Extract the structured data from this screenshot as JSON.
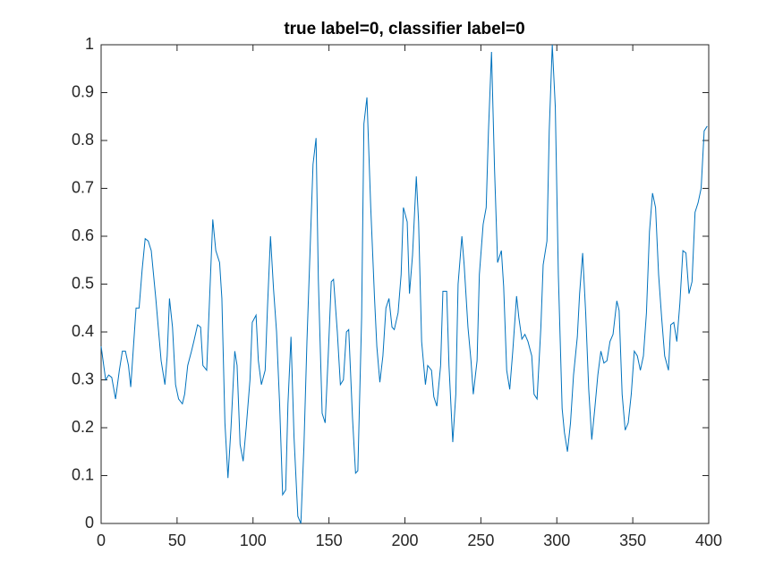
{
  "chart_data": {
    "type": "line",
    "title": "true label=0, classifier label=0",
    "x": [
      0,
      3,
      5,
      7,
      9.5,
      12,
      14,
      16,
      18,
      19.5,
      23,
      25,
      27,
      29,
      31,
      33,
      36,
      39.5,
      42,
      43.5,
      45,
      47,
      49,
      51,
      53.5,
      55,
      57,
      59.5,
      61,
      63.5,
      65.5,
      67,
      69.5,
      73.5,
      75.5,
      78,
      79.5,
      81.5,
      83.5,
      85.5,
      88,
      89.5,
      91.5,
      93.5,
      95.5,
      98,
      99.5,
      102,
      103.5,
      105.5,
      108,
      109.5,
      111.5,
      113.5,
      115.5,
      117.5,
      119.5,
      121.5,
      123,
      125,
      127,
      129.5,
      131.5,
      133.5,
      135.5,
      139.5,
      141.5,
      143,
      145.5,
      147.5,
      149.5,
      151.5,
      153,
      155.5,
      157.5,
      159.5,
      161.5,
      163,
      165.5,
      167.5,
      169,
      171.5,
      173,
      175,
      177.5,
      180,
      181.5,
      183.5,
      185.5,
      187.5,
      189.5,
      191.5,
      193,
      195.5,
      197.5,
      199,
      201.5,
      203,
      205,
      207.5,
      209,
      211,
      213.5,
      215,
      217.5,
      219,
      221,
      223.5,
      225,
      227.5,
      229,
      231.5,
      233.5,
      235,
      237.5,
      239,
      241.5,
      243.5,
      245,
      247.5,
      249,
      251.5,
      253.5,
      255,
      257,
      259,
      261,
      263.5,
      265,
      267,
      269,
      271,
      273.5,
      275,
      277,
      279,
      281,
      283.5,
      285,
      287,
      289.5,
      291,
      293.5,
      295,
      297,
      299,
      301,
      303.5,
      305,
      307,
      309,
      311,
      313.5,
      315,
      317,
      319,
      321,
      323,
      325,
      327,
      329,
      331,
      333,
      335,
      337,
      339.5,
      341,
      343,
      345,
      347,
      349,
      351,
      353,
      355,
      357,
      359,
      361,
      363,
      365,
      367,
      369,
      371,
      373.5,
      375,
      377,
      379,
      381,
      383,
      385,
      387,
      389,
      391,
      393,
      395,
      397,
      399
    ],
    "series": [
      {
        "color": "#0072bd",
        "values": [
          0.37,
          0.3,
          0.31,
          0.305,
          0.26,
          0.32,
          0.36,
          0.36,
          0.33,
          0.285,
          0.45,
          0.45,
          0.53,
          0.595,
          0.59,
          0.57,
          0.47,
          0.34,
          0.29,
          0.35,
          0.47,
          0.41,
          0.29,
          0.26,
          0.25,
          0.27,
          0.33,
          0.36,
          0.38,
          0.415,
          0.41,
          0.33,
          0.32,
          0.635,
          0.57,
          0.545,
          0.47,
          0.21,
          0.095,
          0.2,
          0.36,
          0.33,
          0.165,
          0.13,
          0.2,
          0.3,
          0.42,
          0.435,
          0.34,
          0.29,
          0.32,
          0.45,
          0.6,
          0.49,
          0.4,
          0.25,
          0.06,
          0.07,
          0.25,
          0.39,
          0.18,
          0.015,
          0.0,
          0.16,
          0.38,
          0.75,
          0.805,
          0.51,
          0.23,
          0.21,
          0.35,
          0.505,
          0.51,
          0.4,
          0.29,
          0.3,
          0.4,
          0.405,
          0.22,
          0.105,
          0.11,
          0.43,
          0.835,
          0.89,
          0.66,
          0.47,
          0.37,
          0.295,
          0.35,
          0.45,
          0.47,
          0.41,
          0.405,
          0.44,
          0.52,
          0.66,
          0.63,
          0.48,
          0.56,
          0.725,
          0.63,
          0.38,
          0.29,
          0.33,
          0.32,
          0.265,
          0.245,
          0.33,
          0.485,
          0.485,
          0.33,
          0.17,
          0.27,
          0.5,
          0.6,
          0.54,
          0.41,
          0.34,
          0.27,
          0.34,
          0.52,
          0.625,
          0.66,
          0.82,
          0.985,
          0.74,
          0.545,
          0.57,
          0.495,
          0.32,
          0.28,
          0.36,
          0.475,
          0.43,
          0.385,
          0.395,
          0.38,
          0.35,
          0.27,
          0.26,
          0.41,
          0.54,
          0.59,
          0.82,
          1.0,
          0.87,
          0.52,
          0.24,
          0.19,
          0.15,
          0.21,
          0.31,
          0.39,
          0.48,
          0.565,
          0.44,
          0.28,
          0.175,
          0.24,
          0.31,
          0.36,
          0.335,
          0.34,
          0.38,
          0.395,
          0.465,
          0.445,
          0.27,
          0.195,
          0.21,
          0.27,
          0.36,
          0.35,
          0.32,
          0.35,
          0.44,
          0.61,
          0.69,
          0.66,
          0.52,
          0.43,
          0.35,
          0.32,
          0.415,
          0.42,
          0.38,
          0.46,
          0.57,
          0.565,
          0.48,
          0.505,
          0.65,
          0.67,
          0.7,
          0.82,
          0.83
        ]
      }
    ],
    "xlim": [
      0,
      400
    ],
    "xticks": [
      0,
      50,
      100,
      150,
      200,
      250,
      300,
      350,
      400
    ],
    "ylim": [
      0,
      1
    ],
    "yticks": [
      0,
      0.1,
      0.2,
      0.3,
      0.4,
      0.5,
      0.6,
      0.7,
      0.8,
      0.9,
      1
    ]
  }
}
